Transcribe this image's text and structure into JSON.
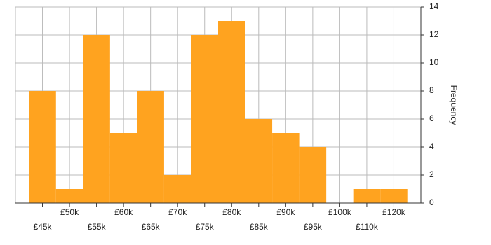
{
  "chart_data": {
    "type": "bar",
    "y_label": "Frequency",
    "categories": [
      "£45k",
      "£50k",
      "£55k",
      "£60k",
      "£65k",
      "£70k",
      "£75k",
      "£80k",
      "£85k",
      "£90k",
      "£95k",
      "£100k",
      "£110k",
      "£120k"
    ],
    "values": [
      8,
      1,
      12,
      5,
      8,
      2,
      12,
      13,
      6,
      5,
      4,
      0,
      1,
      1
    ],
    "color": "#ffa31f",
    "ylim": [
      0,
      14
    ],
    "yticks": [
      0,
      2,
      4,
      6,
      8,
      10,
      12,
      14
    ],
    "grid": true
  }
}
